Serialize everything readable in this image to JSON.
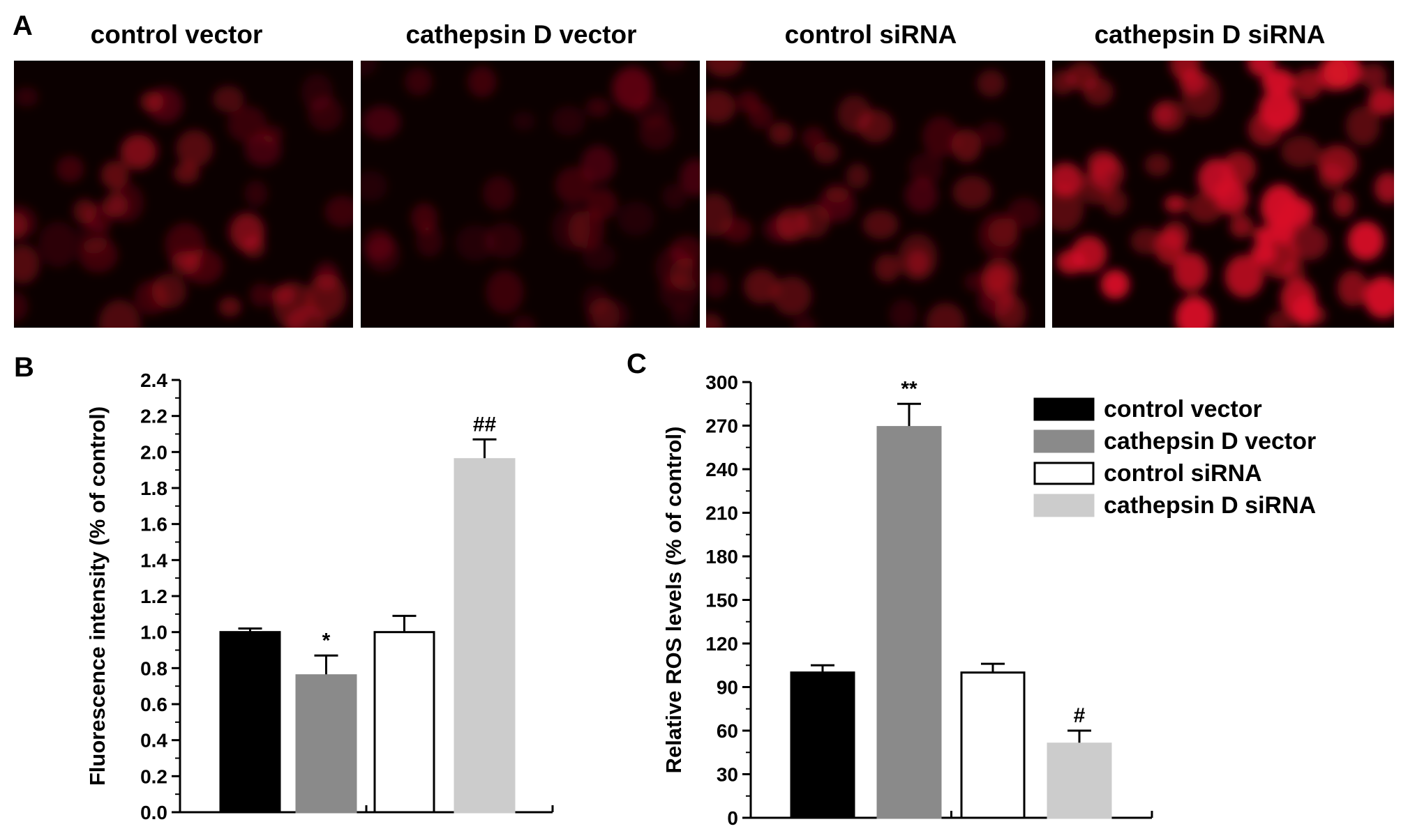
{
  "panel_a": {
    "letter": "A",
    "images": [
      {
        "title": "control vector",
        "intensity": 0.34
      },
      {
        "title": "cathepsin D vector",
        "intensity": 0.22
      },
      {
        "title": "control siRNA",
        "intensity": 0.34
      },
      {
        "title": "cathepsin D siRNA",
        "intensity": 0.8
      }
    ]
  },
  "chart_data": [
    {
      "panel": "B",
      "type": "bar",
      "title": "",
      "xlabel": "",
      "ylabel": "Fluorescence intensity (% of control)",
      "ylim": [
        0,
        2.4
      ],
      "yticks": [
        0.0,
        0.2,
        0.4,
        0.6,
        0.8,
        1.0,
        1.2,
        1.4,
        1.6,
        1.8,
        2.0,
        2.2,
        2.4
      ],
      "ytick_labels": [
        "0.0",
        "0.2",
        "0.4",
        "0.6",
        "0.8",
        "1.0",
        "1.2",
        "1.4",
        "1.6",
        "1.8",
        "2.0",
        "2.2",
        "2.4"
      ],
      "categories": [
        "control vector",
        "cathepsin D vector",
        "control siRNA",
        "cathepsin D siRNA"
      ],
      "values": [
        1.0,
        0.76,
        1.0,
        1.96
      ],
      "errors": [
        0.02,
        0.11,
        0.09,
        0.11
      ],
      "annotations": [
        "",
        "*",
        "",
        "##"
      ],
      "grid": false
    },
    {
      "panel": "C",
      "type": "bar",
      "title": "",
      "xlabel": "",
      "ylabel": "Relative ROS levels (% of control)",
      "ylim": [
        0,
        300
      ],
      "yticks": [
        0,
        30,
        60,
        90,
        120,
        150,
        180,
        210,
        240,
        270,
        300
      ],
      "ytick_labels": [
        "0",
        "30",
        "60",
        "90",
        "120",
        "150",
        "180",
        "210",
        "240",
        "270",
        "300"
      ],
      "categories": [
        "control vector",
        "cathepsin D vector",
        "control siRNA",
        "cathepsin D siRNA"
      ],
      "values": [
        100,
        269,
        100,
        51
      ],
      "errors": [
        5,
        16,
        6,
        9
      ],
      "annotations": [
        "",
        "**",
        "",
        "#"
      ],
      "grid": false,
      "legend": {
        "position": "top-right",
        "entries": [
          "control vector",
          "cathepsin D vector",
          "control siRNA",
          "cathepsin D siRNA"
        ]
      }
    }
  ],
  "colors": {
    "bar_fills": [
      "#000000",
      "#8a8a8a",
      "#ffffff",
      "#cccccc"
    ],
    "stain_color": "#d81228",
    "image_background": "#0b0000"
  }
}
